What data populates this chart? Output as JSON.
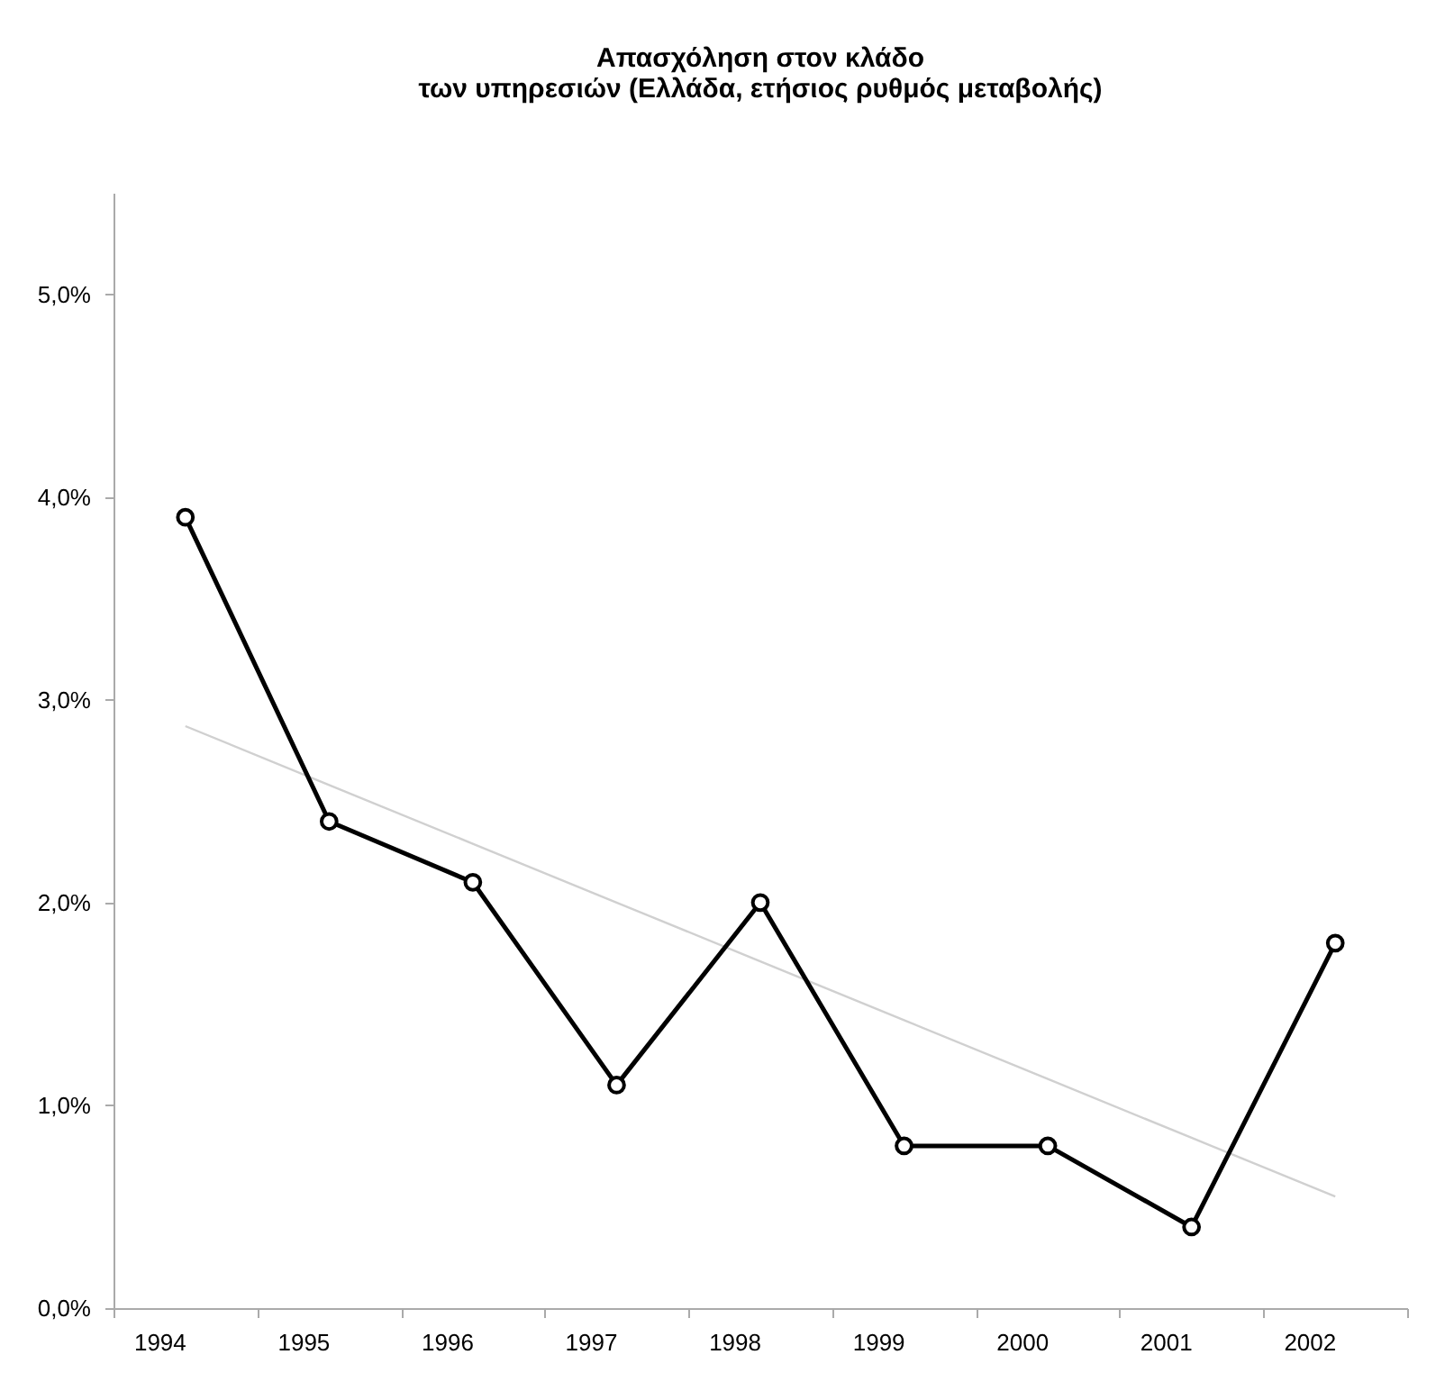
{
  "chart_data": {
    "type": "line",
    "title": [
      "Απασχόληση στον κλάδο",
      "των υπηρεσιών (Ελλάδα, ετήσιος ρυθμός μεταβολής)"
    ],
    "categories": [
      "1994",
      "1995",
      "1996",
      "1997",
      "1998",
      "1999",
      "2000",
      "2001",
      "2002"
    ],
    "series": [
      {
        "color": "#000000",
        "values": [
          3.9,
          2.4,
          2.1,
          1.1,
          2.0,
          0.8,
          0.8,
          0.4,
          1.8
        ],
        "marker": "circle"
      },
      {
        "type": "line",
        "color": "#d0d0d0",
        "values": [
          2.87,
          2.58,
          2.29,
          2.0,
          1.71,
          1.42,
          1.13,
          0.84,
          0.55
        ],
        "marker": "none"
      }
    ],
    "ylim": [
      0,
      5.5
    ],
    "yticks": [
      {
        "value": 0,
        "label": "0,0%"
      },
      {
        "value": 1,
        "label": "1,0%"
      },
      {
        "value": 2,
        "label": "2,0%"
      },
      {
        "value": 3,
        "label": "3,0%"
      },
      {
        "value": 4,
        "label": "4,0%"
      },
      {
        "value": 5,
        "label": "5,0%"
      }
    ],
    "grid": false
  }
}
